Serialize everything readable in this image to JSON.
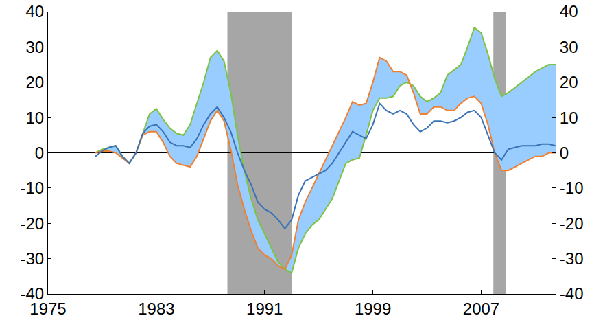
{
  "chart_data": {
    "type": "line",
    "x": [
      1978.5,
      1979,
      1979.5,
      1980,
      1980.5,
      1981,
      1981.5,
      1982,
      1982.5,
      1983,
      1983.5,
      1984,
      1984.5,
      1985,
      1985.5,
      1986,
      1986.5,
      1987,
      1987.5,
      1988,
      1988.5,
      1989,
      1989.5,
      1990,
      1990.5,
      1991,
      1991.5,
      1992,
      1992.5,
      1993,
      1993.5,
      1994,
      1994.5,
      1995,
      1995.5,
      1996,
      1996.5,
      1997,
      1997.5,
      1998,
      1998.5,
      1999,
      1999.5,
      2000,
      2000.5,
      2001,
      2001.5,
      2002,
      2002.5,
      2003,
      2003.5,
      2004,
      2004.5,
      2005,
      2005.5,
      2006,
      2006.5,
      2007,
      2007.5,
      2008,
      2008.5,
      2009,
      2009.5,
      2010,
      2010.5,
      2011,
      2011.5,
      2012,
      2012.5
    ],
    "series": [
      {
        "color": "#7dc243",
        "values": [
          0,
          1,
          1.5,
          2,
          -1,
          -3,
          0,
          5.5,
          11,
          12.5,
          9.5,
          7,
          5.5,
          5,
          8,
          14,
          20,
          27,
          29,
          26,
          17,
          5,
          -5,
          -13,
          -19,
          -23,
          -27,
          -31,
          -33,
          -34,
          -27,
          -23,
          -20.5,
          -19,
          -16,
          -13,
          -8,
          -3,
          -2,
          -1.5,
          5,
          12,
          15.5,
          15.5,
          16,
          19,
          20,
          19,
          16,
          14.5,
          15.5,
          17,
          22,
          23.5,
          25,
          30,
          35.5,
          34,
          28,
          21,
          16,
          17,
          18.5,
          20,
          21.5,
          23,
          24,
          25,
          25
        ]
      },
      {
        "color": "#f07f2f",
        "values": [
          0,
          0.5,
          0.5,
          0,
          -1.5,
          -3,
          0,
          5,
          6,
          6,
          3,
          -1,
          -3,
          -3.5,
          -4,
          -1,
          4,
          9,
          12,
          9,
          1,
          -9,
          -16,
          -22,
          -27,
          -29,
          -30,
          -32,
          -33,
          -29,
          -19,
          -14,
          -10,
          -6,
          -2,
          2,
          6,
          10,
          14.5,
          13.5,
          14,
          20,
          27,
          26,
          23,
          23,
          22,
          17,
          11,
          11,
          13,
          13,
          12,
          12,
          14,
          15.5,
          16,
          14,
          8,
          0,
          -5,
          -5,
          -4,
          -3,
          -2,
          -1,
          -1,
          0,
          0
        ]
      },
      {
        "color": "#3a73b5",
        "values": [
          -1,
          0.5,
          1.5,
          2,
          -1,
          -3,
          0,
          5.5,
          7.5,
          8,
          6,
          3,
          2,
          2,
          1.5,
          4,
          8,
          11,
          13,
          10,
          6,
          0,
          -5,
          -9,
          -14,
          -16,
          -17,
          -19,
          -21.5,
          -19,
          -12,
          -8,
          -7,
          -6,
          -5,
          -3,
          0,
          3,
          6,
          5,
          4,
          8,
          14,
          12,
          11,
          12,
          11,
          8,
          6,
          7,
          9,
          9,
          8.5,
          9,
          10,
          11.5,
          12,
          10,
          5,
          0,
          -2,
          1,
          1.5,
          2,
          2,
          2,
          2.5,
          2.5,
          2
        ]
      }
    ],
    "shaded_periods": [
      [
        1988.25,
        1993.0
      ],
      [
        2007.9,
        2008.8
      ]
    ],
    "xlim": [
      1975,
      2012.5
    ],
    "xticks": [
      1975,
      1983,
      1991,
      1999,
      2007
    ],
    "ylim": [
      -40,
      40
    ],
    "yticks": [
      -40,
      -30,
      -20,
      -10,
      0,
      10,
      20,
      30,
      40
    ],
    "y2lim": [
      -40,
      40
    ],
    "y2ticks": [
      -40,
      -30,
      -20,
      -10,
      0,
      10,
      20,
      30,
      40
    ],
    "grid": false
  }
}
